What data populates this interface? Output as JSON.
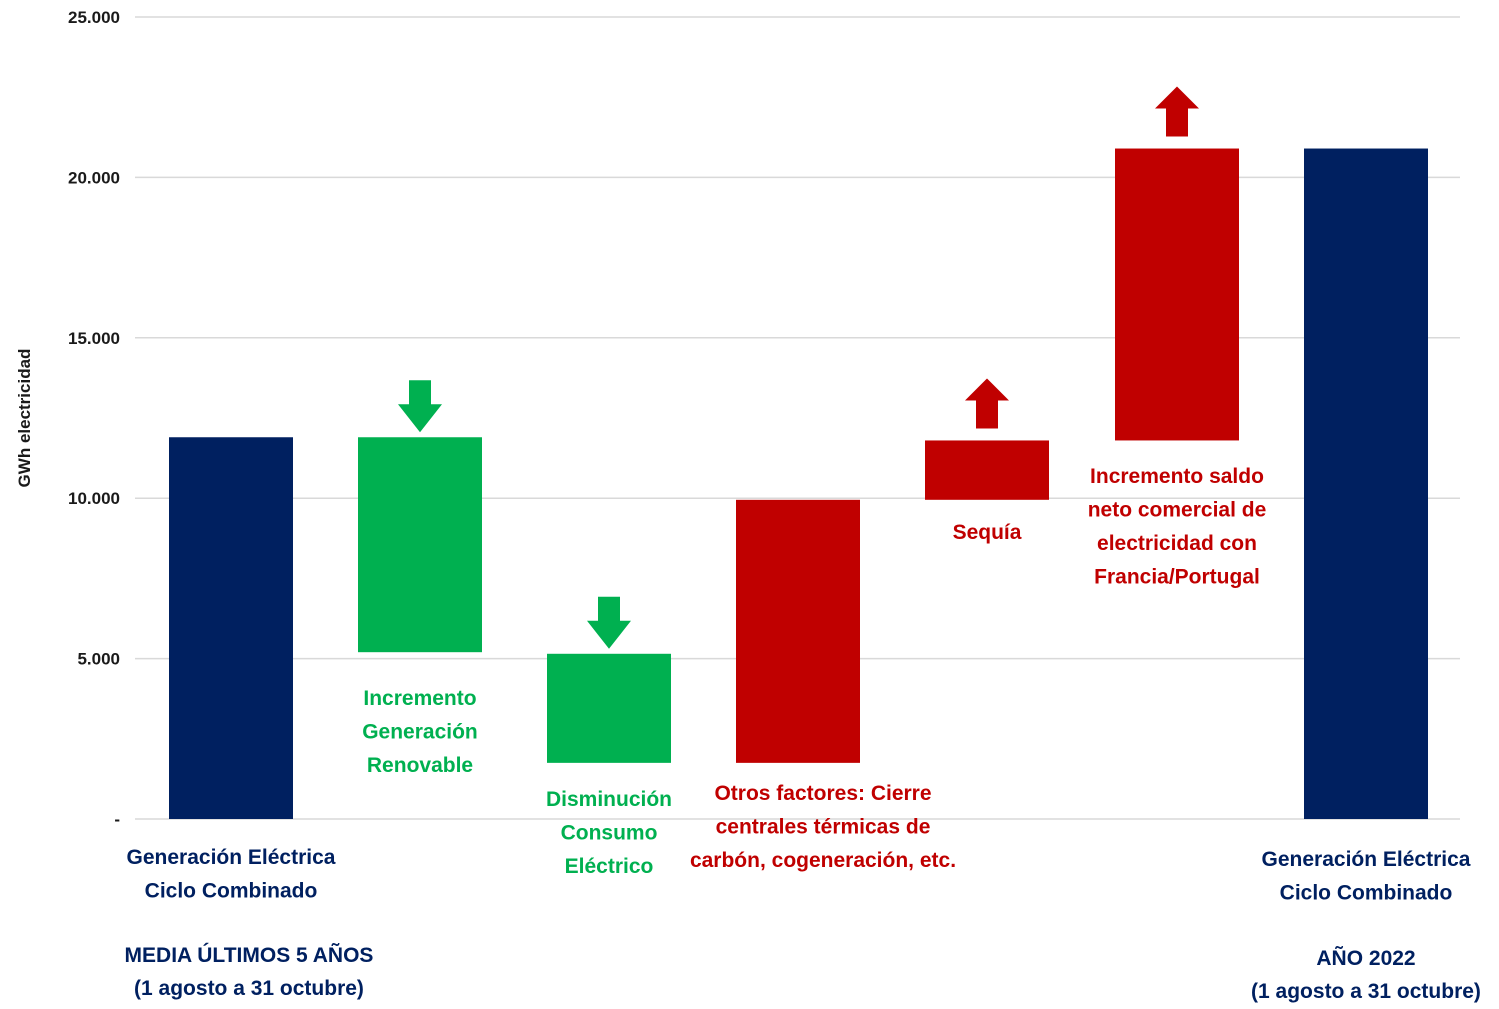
{
  "colors": {
    "navy": "#002060",
    "green": "#00B050",
    "red": "#C00000",
    "grid": "#d9d9d9"
  },
  "chart_data": {
    "type": "waterfall",
    "ylabel": "GWh electricidad",
    "ylim": [
      0,
      25000
    ],
    "yticks": [
      {
        "value": 0,
        "label": "-"
      },
      {
        "value": 5000,
        "label": "5.000"
      },
      {
        "value": 10000,
        "label": "10.000"
      },
      {
        "value": 15000,
        "label": "15.000"
      },
      {
        "value": 20000,
        "label": "20.000"
      },
      {
        "value": 25000,
        "label": "25.000"
      }
    ],
    "grid": true,
    "bars": [
      {
        "id": "base",
        "kind": "total",
        "start": 0,
        "end": 11900,
        "color": "navy",
        "label": [
          "Generación Eléctrica",
          "Ciclo Combinado"
        ],
        "sublabel": [
          "MEDIA ÚLTIMOS 5 AÑOS",
          "(1 agosto a 31 octubre)"
        ]
      },
      {
        "id": "renovable",
        "kind": "decrease",
        "start": 11900,
        "end": 5200,
        "color": "green",
        "label": [
          "Incremento",
          "Generación",
          "Renovable"
        ],
        "arrow": "down"
      },
      {
        "id": "consumo",
        "kind": "decrease",
        "start": 5150,
        "end": 1750,
        "color": "green",
        "label": [
          "Disminución",
          "Consumo",
          "Eléctrico"
        ],
        "arrow": "down"
      },
      {
        "id": "otros",
        "kind": "increase",
        "start": 1750,
        "end": 9950,
        "color": "red",
        "label": [
          "Otros factores: Cierre",
          "centrales térmicas de",
          "carbón, cogeneración, etc."
        ]
      },
      {
        "id": "sequia",
        "kind": "increase",
        "start": 9950,
        "end": 11800,
        "color": "red",
        "label": [
          "Sequía"
        ],
        "arrow": "up"
      },
      {
        "id": "saldo",
        "kind": "increase",
        "start": 11800,
        "end": 20900,
        "color": "red",
        "label": [
          "Incremento saldo",
          "neto comercial de",
          "electricidad con",
          "Francia/Portugal"
        ],
        "arrow": "up"
      },
      {
        "id": "final",
        "kind": "total",
        "start": 0,
        "end": 20900,
        "color": "navy",
        "label": [
          "Generación Eléctrica",
          "Ciclo Combinado"
        ],
        "sublabel": [
          "AÑO 2022",
          "(1 agosto a 31 octubre)"
        ]
      }
    ]
  }
}
